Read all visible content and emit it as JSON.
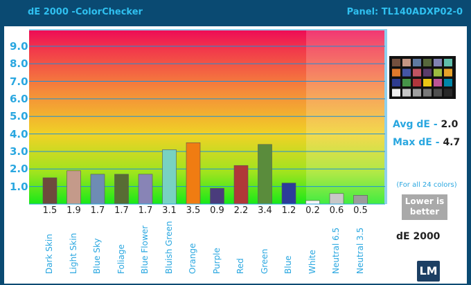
{
  "header": {
    "title": "dE 2000 -ColorChecker",
    "panel": "Panel: TL140ADXP02-0"
  },
  "stats": {
    "avg_label": "Avg dE - ",
    "avg_value": "2.0",
    "max_label": "Max dE - ",
    "max_value": "4.7",
    "note": "(For all 24 colors)",
    "lower_better": "Lower is better",
    "metric": "dE 2000"
  },
  "logo": {
    "text": "LM"
  },
  "colors": {
    "background": "#0a4a72",
    "accent": "#2aa7e0"
  },
  "checker_swatches": [
    "#74503e",
    "#c39684",
    "#5f7aa0",
    "#57683c",
    "#8183b3",
    "#60bdaa",
    "#e07a2c",
    "#4456a6",
    "#c05462",
    "#5a3c6a",
    "#9dbc40",
    "#e6a22a",
    "#2e3c90",
    "#469448",
    "#b0363c",
    "#ecc614",
    "#bc5496",
    "#0086a8",
    "#f2f2f2",
    "#c8c8c8",
    "#a0a0a0",
    "#787878",
    "#505050",
    "#282828"
  ],
  "chart_data": {
    "type": "bar",
    "title": "dE 2000 -ColorChecker",
    "ylim": [
      0,
      9.9
    ],
    "yticks": [
      "1.0",
      "2.0",
      "3.0",
      "4.0",
      "5.0",
      "6.0",
      "7.0",
      "8.0",
      "9.0"
    ],
    "grid": true,
    "categories": [
      "Dark Skin",
      "Light Skin",
      "Blue Sky",
      "Foliage",
      "Blue Flower",
      "Bluish Green",
      "Orange",
      "Purple",
      "Red",
      "Green",
      "Blue",
      "White",
      "Neutral 6.5",
      "Neutral 3.5"
    ],
    "values": [
      1.5,
      1.9,
      1.7,
      1.7,
      1.7,
      3.1,
      3.5,
      0.9,
      2.2,
      3.4,
      1.2,
      0.2,
      0.6,
      0.5
    ],
    "value_labels": [
      "1.5",
      "1.9",
      "1.7",
      "1.7",
      "1.7",
      "3.1",
      "3.5",
      "0.9",
      "2.2",
      "3.4",
      "1.2",
      "0.2",
      "0.6",
      "0.5"
    ],
    "bar_colors": [
      "#6e4a3c",
      "#c49a8a",
      "#6e8cb4",
      "#586c34",
      "#8884b6",
      "#78d2c2",
      "#f07c12",
      "#4a3c7c",
      "#b03838",
      "#5a8c3c",
      "#2c3c9a",
      "#f4f4f4",
      "#c8c8c8",
      "#9c9c9c"
    ]
  }
}
